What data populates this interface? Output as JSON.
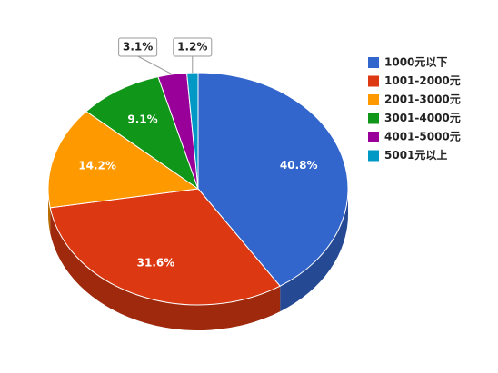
{
  "chart_data": {
    "type": "pie",
    "categories": [
      "1000元以下",
      "1001-2000元",
      "2001-3000元",
      "3001-4000元",
      "4001-5000元",
      "5001元以上"
    ],
    "values": [
      40.8,
      31.6,
      14.2,
      9.1,
      3.1,
      1.2
    ],
    "value_labels": [
      "40.8%",
      "31.6%",
      "14.2%",
      "9.1%",
      "3.1%",
      "1.2%"
    ],
    "colors": [
      "#3366cc",
      "#dc3912",
      "#ff9900",
      "#109618",
      "#990099",
      "#0099c6"
    ],
    "legend": "right"
  }
}
